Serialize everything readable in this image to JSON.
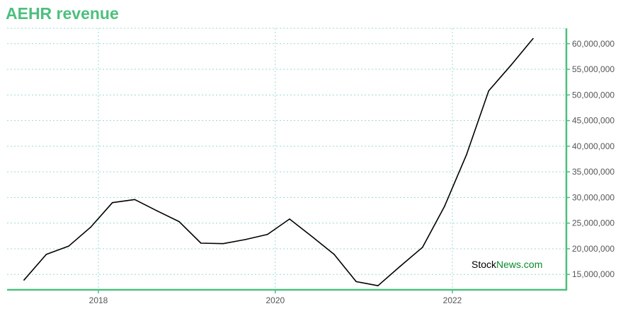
{
  "chart_data": {
    "type": "line",
    "title": "AEHR revenue",
    "x_ticks": [
      "2018",
      "2020",
      "2022"
    ],
    "y_ticks": [
      "15,000,000",
      "20,000,000",
      "25,000,000",
      "30,000,000",
      "35,000,000",
      "40,000,000",
      "45,000,000",
      "50,000,000",
      "55,000,000",
      "60,000,000"
    ],
    "ylim": [
      12000000,
      63000000
    ],
    "grid": true,
    "series": [
      {
        "x": [
          "2017-02-28",
          "2017-05-31",
          "2017-08-31",
          "2017-11-30",
          "2018-02-28",
          "2018-05-31",
          "2018-08-31",
          "2018-11-30",
          "2019-02-28",
          "2019-05-31",
          "2019-08-31",
          "2019-11-30",
          "2020-02-29",
          "2020-05-31",
          "2020-08-31",
          "2020-11-30",
          "2021-02-28",
          "2021-05-31",
          "2021-08-31",
          "2021-11-30",
          "2022-02-28",
          "2022-05-31",
          "2022-08-31",
          "2022-11-30"
        ],
        "values": [
          13900000,
          18900000,
          20500000,
          24200000,
          29000000,
          29600000,
          27400000,
          25300000,
          21100000,
          21000000,
          21800000,
          22800000,
          25800000,
          22400000,
          18900000,
          13600000,
          12800000,
          16600000,
          20300000,
          28300000,
          38300000,
          50800000,
          55800000,
          61000000
        ]
      }
    ],
    "color": "#000000",
    "axis_color": "#4dbf7e",
    "grid_color": "#9ed8d4"
  },
  "watermark": {
    "part1": "Stock",
    "part2": "News.com"
  }
}
